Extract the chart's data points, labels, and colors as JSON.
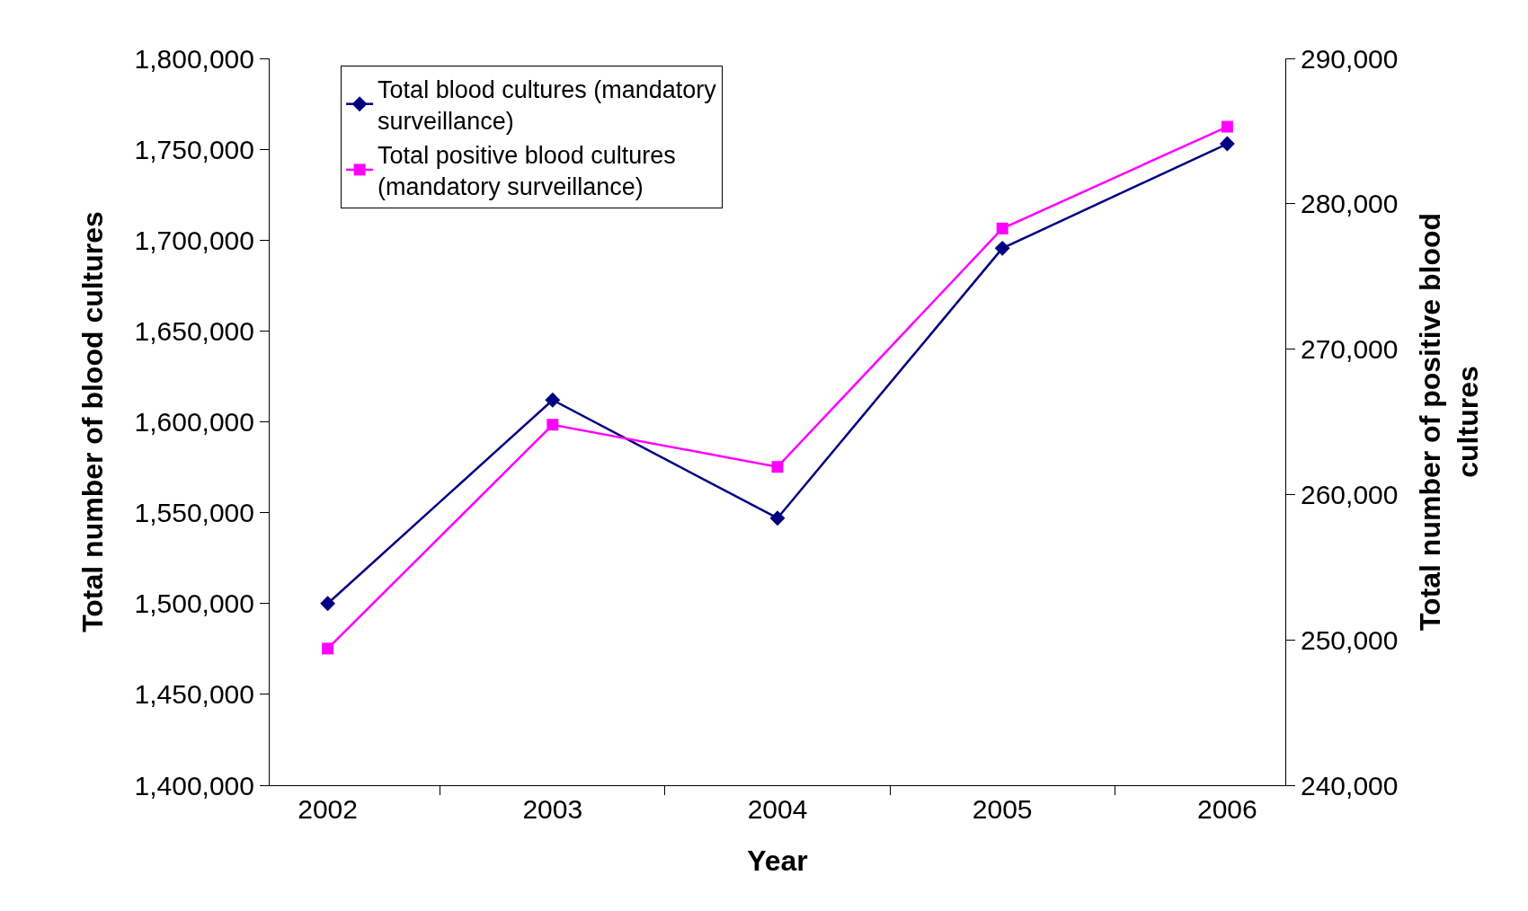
{
  "chart_data": {
    "type": "line",
    "xlabel": "Year",
    "ylabel": "Total number of blood cultures",
    "y2label": "Total number of positive blood cultures",
    "categories": [
      "2002",
      "2003",
      "2004",
      "2005",
      "2006"
    ],
    "series": [
      {
        "name": "Total blood cultures (mandatory surveillance)",
        "color": "#000080",
        "marker": "diamond",
        "values": [
          1500000,
          1612000,
          1547000,
          1695500,
          1753000
        ]
      },
      {
        "name": "Total positive blood cultures (mandatory surveillance)",
        "color": "#ff00ff",
        "marker": "square",
        "axis": "y2",
        "values": [
          249400,
          264800,
          261900,
          278300,
          285300
        ]
      }
    ],
    "ylim": [
      1400000,
      1800000
    ],
    "yticks": [
      {
        "value": 1400000,
        "label": "1,400,000"
      },
      {
        "value": 1450000,
        "label": "1,450,000"
      },
      {
        "value": 1500000,
        "label": "1,500,000"
      },
      {
        "value": 1550000,
        "label": "1,550,000"
      },
      {
        "value": 1600000,
        "label": "1,600,000"
      },
      {
        "value": 1650000,
        "label": "1,650,000"
      },
      {
        "value": 1700000,
        "label": "1,700,000"
      },
      {
        "value": 1750000,
        "label": "1,750,000"
      },
      {
        "value": 1800000,
        "label": "1,800,000"
      }
    ],
    "y2lim": [
      240000,
      290000
    ],
    "y2ticks": [
      {
        "value": 240000,
        "label": "240,000"
      },
      {
        "value": 250000,
        "label": "250,000"
      },
      {
        "value": 260000,
        "label": "260,000"
      },
      {
        "value": 270000,
        "label": "270,000"
      },
      {
        "value": 280000,
        "label": "280,000"
      },
      {
        "value": 290000,
        "label": "290,000"
      }
    ],
    "grid": false,
    "legend": "top left",
    "line_style": "solid"
  }
}
